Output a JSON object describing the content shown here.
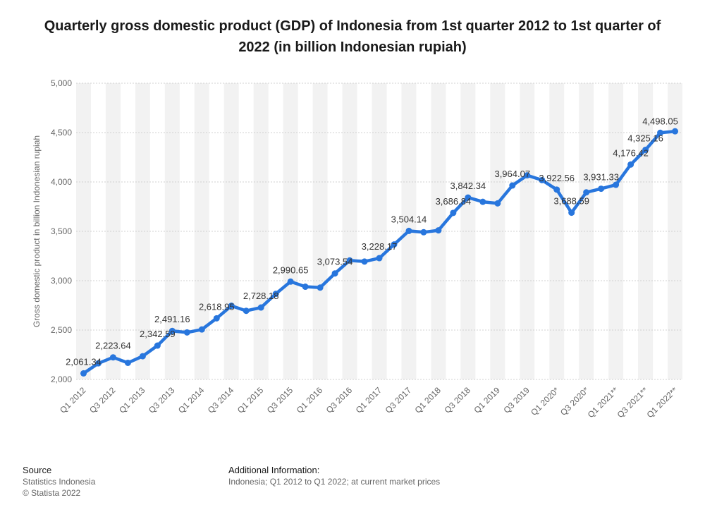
{
  "chart_data": {
    "type": "line",
    "title": "Quarterly gross domestic product (GDP) of Indonesia from 1st quarter 2012 to 1st quarter of 2022 (in billion Indonesian rupiah)",
    "ylabel": "Gross domestic product in billion Indonesian rupiah",
    "xlabel": "",
    "ylim": [
      2000,
      5000
    ],
    "yticks": [
      "2,000",
      "2,500",
      "3,000",
      "3,500",
      "4,000",
      "4,500",
      "5,000"
    ],
    "grid": true,
    "color": "#2876dd",
    "x": [
      "Q1 2012",
      "Q2 2012",
      "Q3 2012",
      "Q4 2012",
      "Q1 2013",
      "Q2 2013",
      "Q3 2013",
      "Q4 2013",
      "Q1 2014",
      "Q2 2014",
      "Q3 2014",
      "Q4 2014",
      "Q1 2015",
      "Q2 2015",
      "Q3 2015",
      "Q4 2015",
      "Q1 2016",
      "Q2 2016",
      "Q3 2016",
      "Q4 2016",
      "Q1 2017",
      "Q2 2017",
      "Q3 2017",
      "Q4 2017",
      "Q1 2018",
      "Q2 2018",
      "Q3 2018",
      "Q4 2018",
      "Q1 2019",
      "Q2 2019",
      "Q3 2019",
      "Q4 2019",
      "Q1 2020*",
      "Q2 2020*",
      "Q3 2020*",
      "Q4 2020*",
      "Q1 2021**",
      "Q2 2021**",
      "Q3 2021**",
      "Q4 2021**",
      "Q1 2022**"
    ],
    "xtick_labels": [
      "Q1 2012",
      "",
      "Q3 2012",
      "",
      "Q1 2013",
      "",
      "Q3 2013",
      "",
      "Q1 2014",
      "",
      "Q3 2014",
      "",
      "Q1 2015",
      "",
      "Q3 2015",
      "",
      "Q1 2016",
      "",
      "Q3 2016",
      "",
      "Q1 2017",
      "",
      "Q3 2017",
      "",
      "Q1 2018",
      "",
      "Q3 2018",
      "",
      "Q1 2019",
      "",
      "Q3 2019",
      "",
      "Q1 2020*",
      "",
      "Q3 2020*",
      "",
      "Q1 2021**",
      "",
      "Q3 2021**",
      "",
      "Q1 2022**"
    ],
    "values": [
      2061.34,
      2163,
      2223.64,
      2168,
      2235,
      2342.59,
      2491.16,
      2476,
      2506,
      2618.95,
      2746,
      2695,
      2728.18,
      2867,
      2990.65,
      2939,
      2930,
      3073.54,
      3205,
      3194,
      3228.17,
      3367,
      3504.14,
      3491,
      3510,
      3686.84,
      3842.34,
      3799,
      3783,
      3964.07,
      4067,
      4019,
      3922.56,
      3688.59,
      3895,
      3931.33,
      3971,
      4176.42,
      4325.16,
      4498.05,
      4513
    ],
    "data_labels": [
      "2,061.34",
      "",
      "2,223.64",
      "",
      "",
      "2,342.59",
      "2,491.16",
      "",
      "",
      "2,618.95",
      "",
      "",
      "2,728.18",
      "",
      "2,990.65",
      "",
      "",
      "3,073.54",
      "",
      "",
      "3,228.17",
      "",
      "3,504.14",
      "",
      "",
      "3,686.84",
      "3,842.34",
      "",
      "",
      "3,964.07",
      "",
      "",
      "3,922.56",
      "3,688.59",
      "",
      "3,931.33",
      "",
      "4,176.42",
      "4,325.16",
      "4,498.05",
      ""
    ]
  },
  "footer": {
    "source_heading": "Source",
    "source_lines": [
      "Statistics Indonesia",
      "© Statista 2022"
    ],
    "additional_heading": "Additional Information:",
    "additional_text": "Indonesia; Q1 2012 to Q1 2022; at current market prices"
  }
}
